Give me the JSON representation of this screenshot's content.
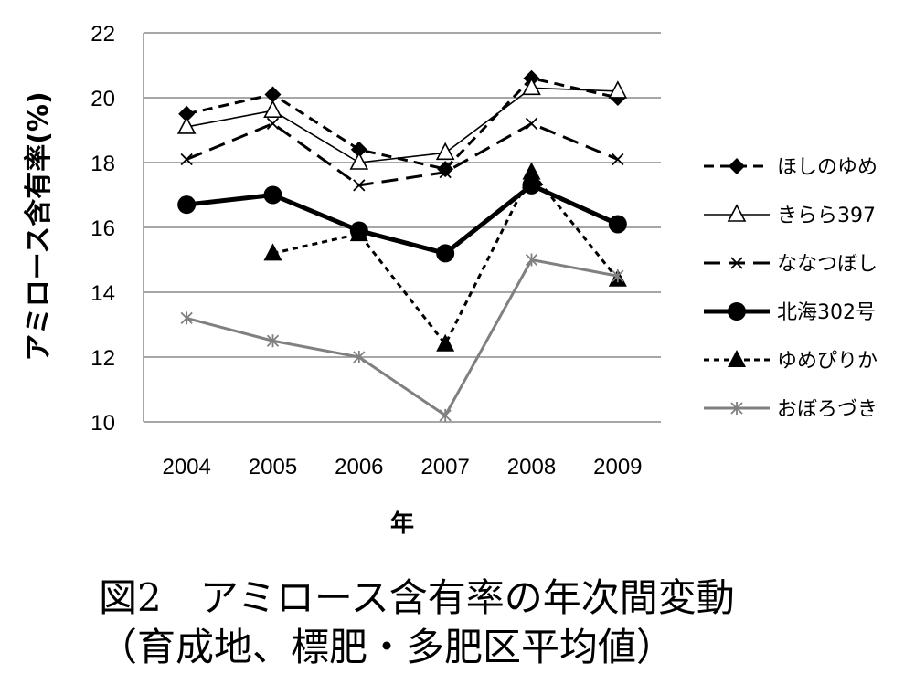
{
  "chart_data": {
    "type": "line",
    "title": "",
    "xlabel": "年",
    "ylabel": "アミロース含有率(%)",
    "ylim": [
      10,
      22
    ],
    "yticks": [
      "10",
      "12",
      "14",
      "16",
      "18",
      "20",
      "22"
    ],
    "categories": [
      "2004",
      "2005",
      "2006",
      "2007",
      "2008",
      "2009"
    ],
    "grid": true,
    "legend": "right",
    "series": [
      {
        "name": "ほしのゆめ",
        "values": [
          19.5,
          20.1,
          18.4,
          17.8,
          20.6,
          20.0
        ],
        "marker": "diamond",
        "dash": "dashed",
        "color": "#000000"
      },
      {
        "name": "きらら397",
        "values": [
          19.1,
          19.6,
          18.0,
          18.3,
          20.3,
          20.2
        ],
        "marker": "triangle-open",
        "dash": "solid",
        "color": "#000000"
      },
      {
        "name": "ななつぼし",
        "values": [
          18.1,
          19.2,
          17.3,
          17.7,
          19.2,
          18.1
        ],
        "marker": "x",
        "dash": "longdash",
        "color": "#000000"
      },
      {
        "name": "北海302号",
        "values": [
          16.7,
          17.0,
          15.9,
          15.2,
          17.3,
          16.1
        ],
        "marker": "circle",
        "dash": "solid-thick",
        "color": "#000000"
      },
      {
        "name": "ゆめぴりか",
        "values": [
          null,
          15.2,
          15.8,
          12.4,
          17.7,
          14.4
        ],
        "marker": "triangle",
        "dash": "dotted",
        "color": "#000000"
      },
      {
        "name": "おぼろづき",
        "values": [
          13.2,
          12.5,
          12.0,
          10.2,
          15.0,
          14.5
        ],
        "marker": "asterisk",
        "dash": "solid",
        "color": "#808080"
      }
    ]
  },
  "caption": {
    "line1": "図2　アミロース含有率の年次間変動",
    "line2": "（育成地、標肥・多肥区平均値）"
  }
}
